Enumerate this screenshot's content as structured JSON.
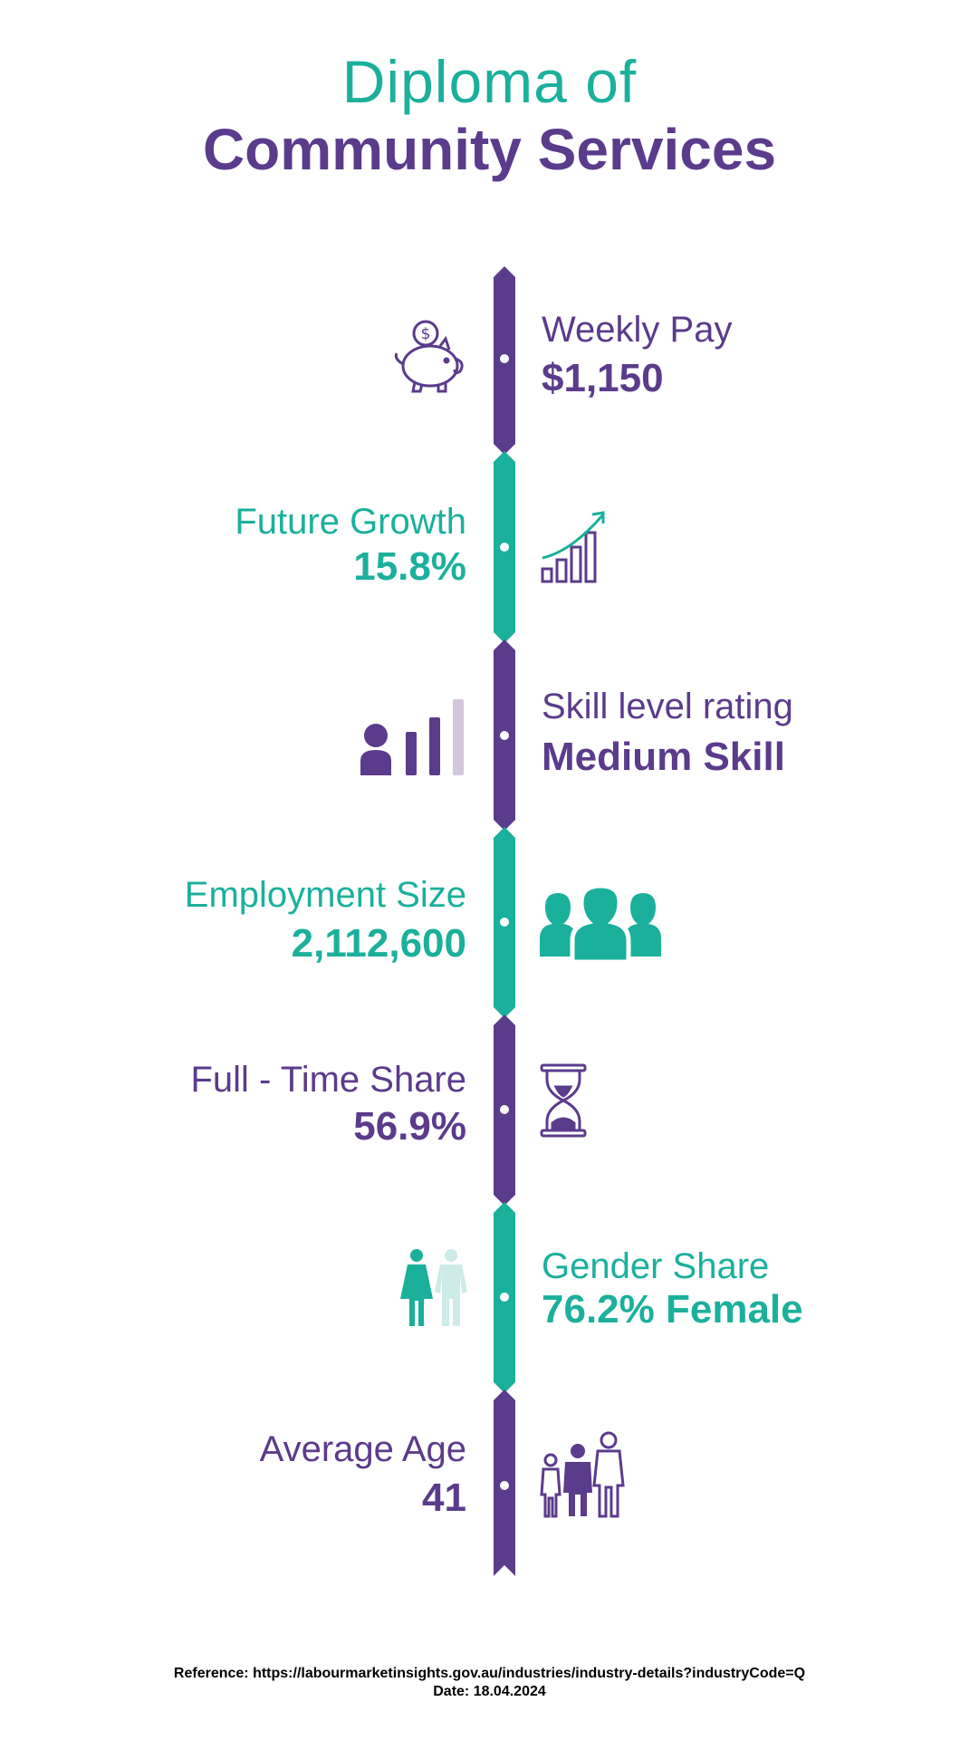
{
  "title": {
    "line1": "Diploma of",
    "line2": "Community Services"
  },
  "colors": {
    "purple": "#5b3b8c",
    "teal": "#1bb09c",
    "light_purple": "#d3c7de",
    "light_teal": "#cdece7"
  },
  "stats": [
    {
      "label": "Weekly Pay",
      "value": "$1,150",
      "icon": "piggy-bank-icon"
    },
    {
      "label": "Future Growth",
      "value": "15.8%",
      "icon": "growth-chart-icon"
    },
    {
      "label": "Skill level rating",
      "value": "Medium Skill",
      "icon": "skill-level-icon"
    },
    {
      "label": "Employment Size",
      "value": "2,112,600",
      "icon": "people-group-icon"
    },
    {
      "label": "Full - Time Share",
      "value": "56.9%",
      "icon": "hourglass-icon"
    },
    {
      "label": "Gender Share",
      "value": "76.2% Female",
      "icon": "gender-icon"
    },
    {
      "label": "Average Age",
      "value": "41",
      "icon": "family-icon"
    }
  ],
  "reference": {
    "text": "Reference: https://labourmarketinsights.gov.au/industries/industry-details?industryCode=Q",
    "date": "Date: 18.04.2024"
  }
}
